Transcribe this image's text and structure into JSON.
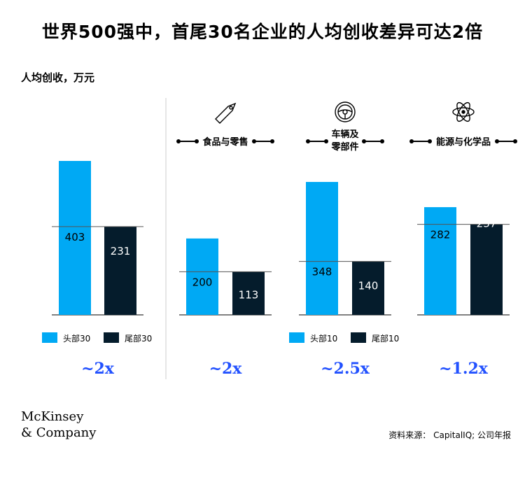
{
  "title": "世界500强中，首尾30名企业的人均创收差异可达2倍",
  "ylabel": "人均创收，万元",
  "colors": {
    "top": "#00A9F4",
    "bottom": "#051C2C",
    "multiplier": "#2251FF",
    "divider": "#cccccc"
  },
  "chart_data": {
    "type": "bar",
    "ylabel": "人均创收，万元",
    "groups": [
      {
        "name": "",
        "icon": "",
        "categories": [
          "头部30",
          "尾部30"
        ],
        "values": [
          403,
          231
        ],
        "legend": [
          "头部30",
          "尾部30"
        ],
        "multiplier": "~2x"
      },
      {
        "name": "食品与零售",
        "icon": "price-tag-icon",
        "categories": [
          "头部30",
          "尾部30"
        ],
        "values": [
          200,
          113
        ],
        "legend": [],
        "multiplier": "~2x"
      },
      {
        "name_lines": [
          "车辆及",
          "零部件"
        ],
        "icon": "steering-wheel-icon",
        "categories": [
          "头部10",
          "尾部10"
        ],
        "values": [
          348,
          140
        ],
        "legend": [
          "头部10",
          "尾部10"
        ],
        "multiplier": "~2.5x"
      },
      {
        "name": "能源与化学品",
        "icon": "atom-icon",
        "categories": [
          "头部10",
          "尾部10"
        ],
        "values": [
          282,
          237
        ],
        "legend": [],
        "multiplier": "~1.2x"
      }
    ]
  },
  "logo_lines": [
    "McKinsey",
    "& Company"
  ],
  "source": "资料来源： CapitalIQ; 公司年报"
}
